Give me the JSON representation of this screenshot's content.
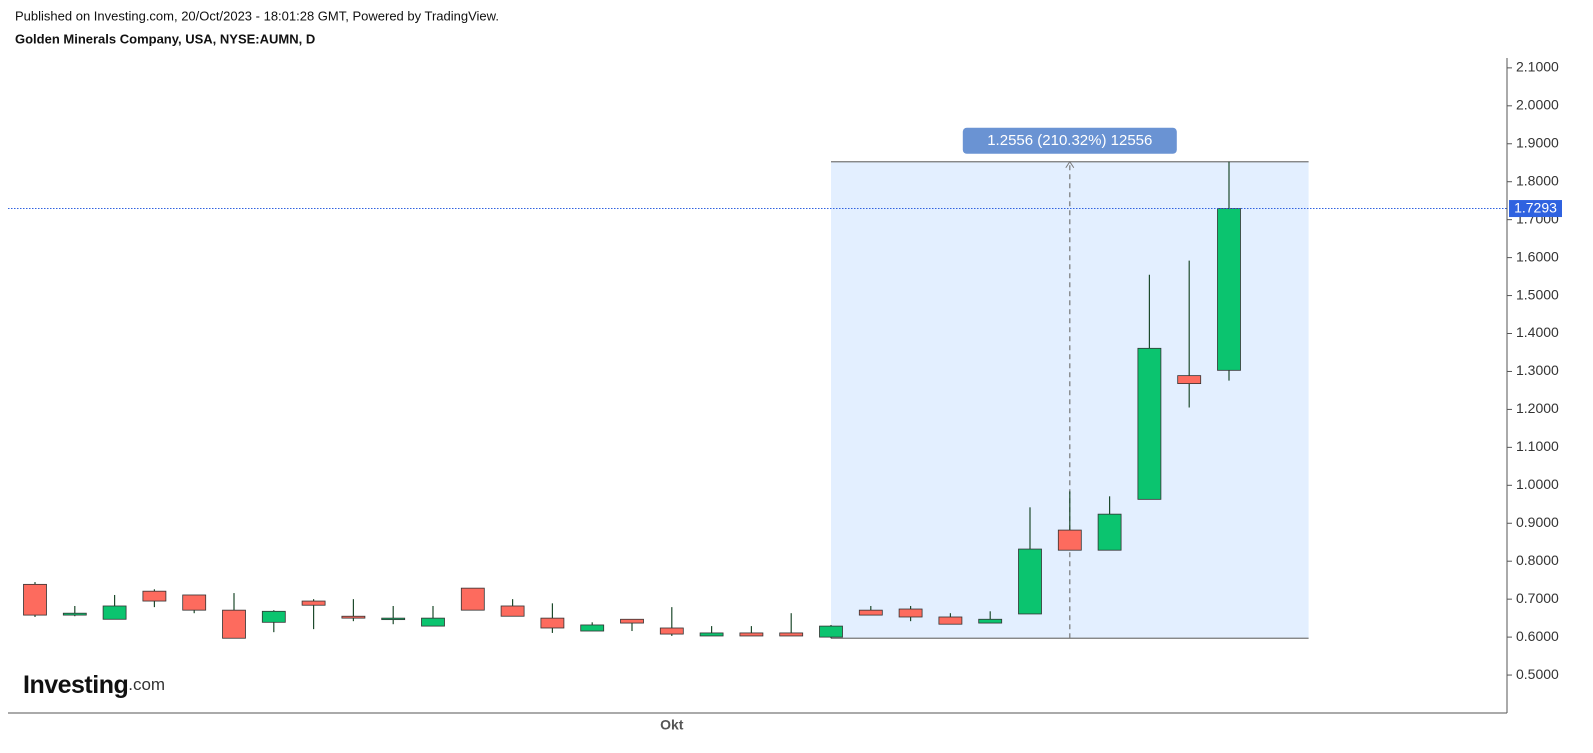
{
  "header": {
    "published": "Published on Investing.com, 20/Oct/2023 - 18:01:28 GMT, Powered by TradingView.",
    "symbol": "Golden Minerals Company, USA, NYSE:AUMN, D"
  },
  "logo": {
    "name": "Investing",
    "suffix": ".com"
  },
  "chart_data": {
    "type": "candlestick",
    "categories": [
      null,
      null,
      null,
      null,
      null,
      null,
      null,
      null,
      null,
      null,
      null,
      null,
      null,
      null,
      null,
      null,
      "Okt",
      null,
      null,
      null,
      null,
      null,
      null,
      null,
      null,
      null,
      null,
      null,
      null,
      null,
      null
    ],
    "open": [
      0.739,
      0.658,
      0.647,
      0.721,
      0.711,
      0.671,
      0.639,
      0.695,
      0.655,
      0.648,
      0.629,
      0.729,
      0.682,
      0.65,
      0.616,
      0.647,
      0.624,
      0.603,
      0.611,
      0.611,
      0.6,
      0.671,
      0.674,
      0.653,
      0.637,
      0.661,
      0.882,
      0.829,
      0.963,
      1.289,
      1.303
    ],
    "high": [
      0.745,
      0.682,
      0.711,
      0.726,
      0.711,
      0.716,
      0.671,
      0.7,
      0.7,
      0.682,
      0.682,
      0.729,
      0.7,
      0.689,
      0.639,
      0.647,
      0.679,
      0.629,
      0.629,
      0.663,
      0.632,
      0.682,
      0.682,
      0.663,
      0.668,
      0.942,
      0.984,
      0.971,
      1.555,
      1.592,
      1.8526
    ],
    "low": [
      0.653,
      0.655,
      0.647,
      0.679,
      0.663,
      0.597,
      0.613,
      0.621,
      0.642,
      0.634,
      0.629,
      0.671,
      0.655,
      0.611,
      0.616,
      0.616,
      0.603,
      0.603,
      0.603,
      0.603,
      0.597,
      0.658,
      0.642,
      0.634,
      0.637,
      0.661,
      0.829,
      0.829,
      0.963,
      1.205,
      1.276
    ],
    "close": [
      0.658,
      0.663,
      0.682,
      0.695,
      0.671,
      0.597,
      0.668,
      0.684,
      0.65,
      0.65,
      0.65,
      0.671,
      0.655,
      0.624,
      0.632,
      0.637,
      0.608,
      0.611,
      0.603,
      0.603,
      0.629,
      0.658,
      0.653,
      0.634,
      0.647,
      0.832,
      0.829,
      0.924,
      1.361,
      1.268,
      1.7293
    ],
    "up_color": "#0bc46f",
    "down_color": "#fd6b5e",
    "wick_color": "#1d4a2c",
    "ylim": [
      0.4,
      2.126
    ],
    "yticks": [
      {
        "value": 0.5,
        "label": "0.5000"
      },
      {
        "value": 0.6,
        "label": "0.6000"
      },
      {
        "value": 0.7,
        "label": "0.7000"
      },
      {
        "value": 0.8,
        "label": "0.8000"
      },
      {
        "value": 0.9,
        "label": "0.9000"
      },
      {
        "value": 1.0,
        "label": "1.0000"
      },
      {
        "value": 1.1,
        "label": "1.1000"
      },
      {
        "value": 1.2,
        "label": "1.2000"
      },
      {
        "value": 1.3,
        "label": "1.3000"
      },
      {
        "value": 1.4,
        "label": "1.4000"
      },
      {
        "value": 1.5,
        "label": "1.5000"
      },
      {
        "value": 1.6,
        "label": "1.6000"
      },
      {
        "value": 1.7,
        "label": "1.7000"
      },
      {
        "value": 1.8,
        "label": "1.8000"
      },
      {
        "value": 1.9,
        "label": "1.9000"
      },
      {
        "value": 2.0,
        "label": "2.0000"
      },
      {
        "value": 2.1,
        "label": "2.1000"
      }
    ],
    "last_price": 1.7293,
    "last_price_color": "#2f62e0",
    "measure": {
      "label": "1.2556 (210.32%) 12556",
      "from": 0.597,
      "to": 1.8526,
      "fill": "#e3efff",
      "label_color": "#6a93d3"
    }
  }
}
